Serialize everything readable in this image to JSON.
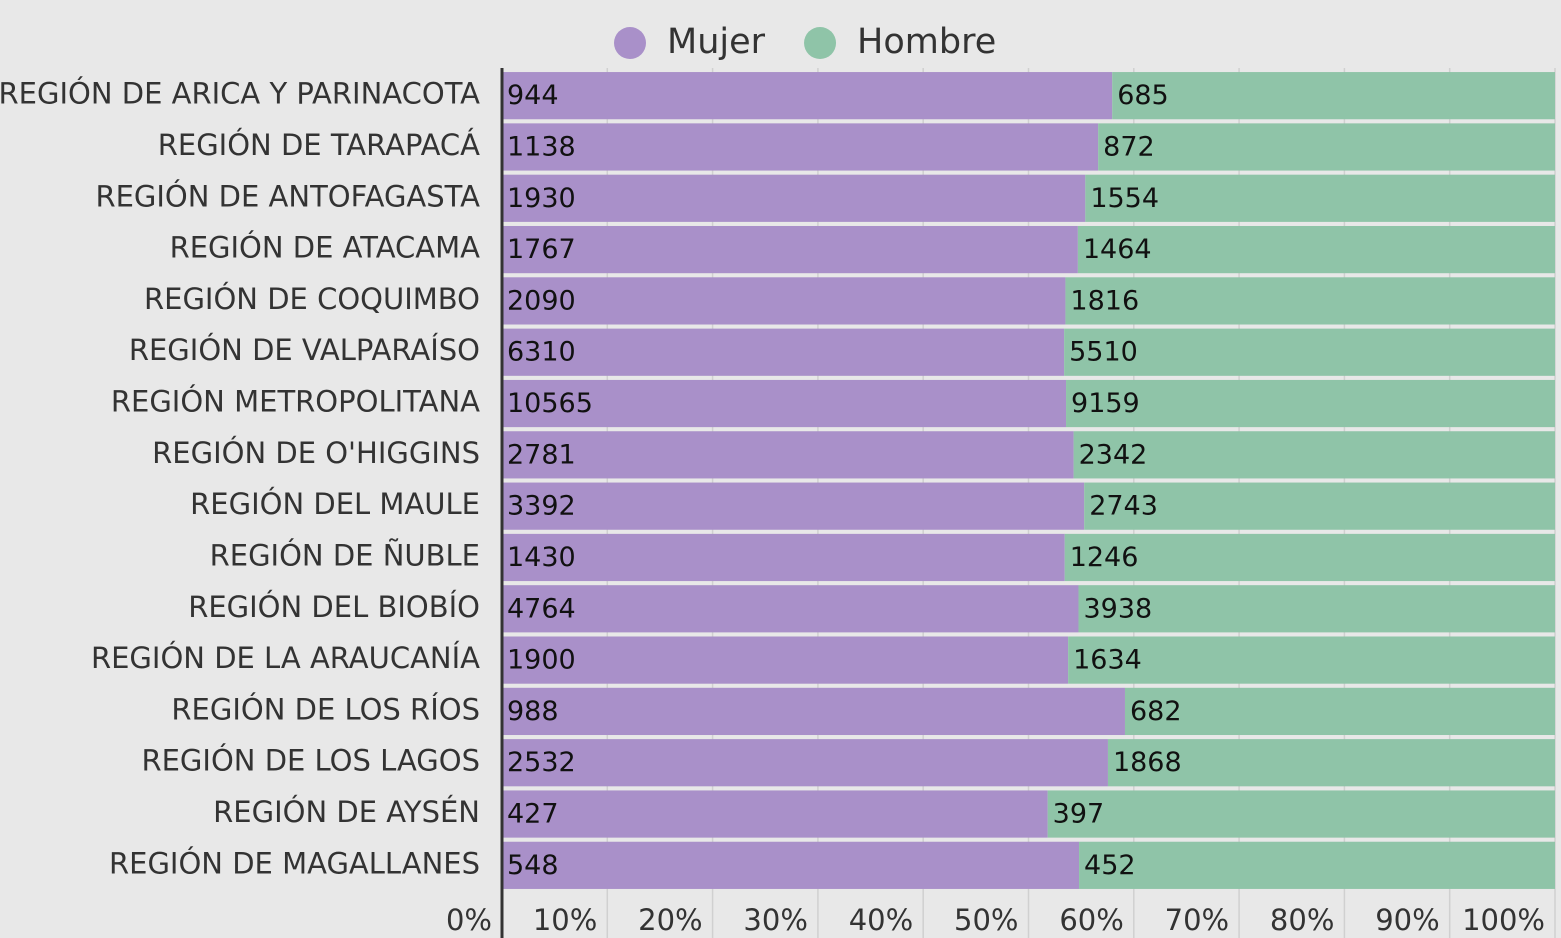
{
  "chart_data": {
    "type": "bar",
    "orientation": "horizontal",
    "stacking": "percent",
    "categories": [
      "REGIÓN DE ARICA Y PARINACOTA",
      "REGIÓN DE TARAPACÁ",
      "REGIÓN DE ANTOFAGASTA",
      "REGIÓN DE ATACAMA",
      "REGIÓN DE COQUIMBO",
      "REGIÓN DE VALPARAÍSO",
      "REGIÓN METROPOLITANA",
      "REGIÓN DE O'HIGGINS",
      "REGIÓN DEL MAULE",
      "REGIÓN DE ÑUBLE",
      "REGIÓN DEL BIOBÍO",
      "REGIÓN DE LA ARAUCANÍA",
      "REGIÓN DE LOS RÍOS",
      "REGIÓN DE LOS LAGOS",
      "REGIÓN DE AYSÉN",
      "REGIÓN DE MAGALLANES"
    ],
    "series": [
      {
        "name": "Mujer",
        "color": "#a990c9",
        "values": [
          944,
          1138,
          1930,
          1767,
          2090,
          6310,
          10565,
          2781,
          3392,
          1430,
          4764,
          1900,
          988,
          2532,
          427,
          548
        ]
      },
      {
        "name": "Hombre",
        "color": "#8fc4a8",
        "values": [
          685,
          872,
          1554,
          1464,
          1816,
          5510,
          9159,
          2342,
          2743,
          1246,
          3938,
          1634,
          682,
          1868,
          397,
          452
        ]
      }
    ],
    "xlim": [
      0,
      100
    ],
    "xticks": [
      {
        "value": 0,
        "label": "0%"
      },
      {
        "value": 10,
        "label": "10%"
      },
      {
        "value": 20,
        "label": "20%"
      },
      {
        "value": 30,
        "label": "30%"
      },
      {
        "value": 40,
        "label": "40%"
      },
      {
        "value": 50,
        "label": "50%"
      },
      {
        "value": 60,
        "label": "60%"
      },
      {
        "value": 70,
        "label": "70%"
      },
      {
        "value": 80,
        "label": "80%"
      },
      {
        "value": 90,
        "label": "90%"
      },
      {
        "value": 100,
        "label": "100%"
      }
    ],
    "grid": true,
    "legend": "top"
  }
}
